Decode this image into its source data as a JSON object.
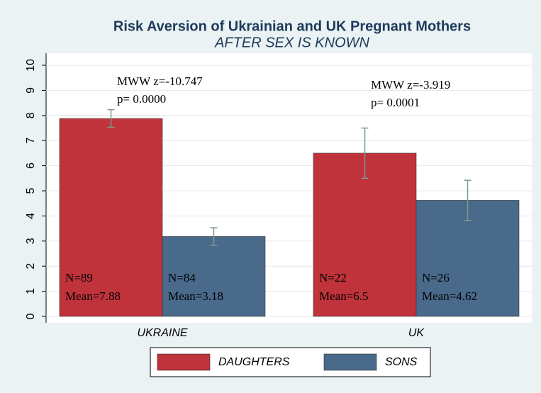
{
  "chart_data": {
    "type": "bar",
    "title": "Risk Aversion of Ukrainian and UK Pregnant Mothers",
    "subtitle": "AFTER SEX IS KNOWN",
    "categories": [
      "UKRAINE",
      "UK"
    ],
    "series": [
      {
        "name": "DAUGHTERS",
        "color": "#c0333b",
        "values": [
          7.88,
          6.5
        ],
        "errors": [
          0.35,
          1.0
        ],
        "value_labels": [
          "Mean=7.88",
          "Mean=6.5"
        ],
        "n_labels": [
          "N=89",
          "N=22"
        ]
      },
      {
        "name": "SONS",
        "color": "#496a8b",
        "values": [
          3.18,
          4.62
        ],
        "errors": [
          0.35,
          0.8
        ],
        "value_labels": [
          "Mean=3.18",
          "Mean=4.62"
        ],
        "n_labels": [
          "N=84",
          "N=26"
        ]
      }
    ],
    "annotations": [
      [
        "MWW z=-10.747",
        "p= 0.0000"
      ],
      [
        "MWW z=-3.919",
        "p= 0.0001"
      ]
    ],
    "ylim": [
      0,
      10
    ],
    "yticks": [
      0,
      1,
      2,
      3,
      4,
      5,
      6,
      7,
      8,
      9,
      10
    ],
    "grid": true,
    "error_color": "#7b9a8e",
    "legend": "bottom"
  }
}
